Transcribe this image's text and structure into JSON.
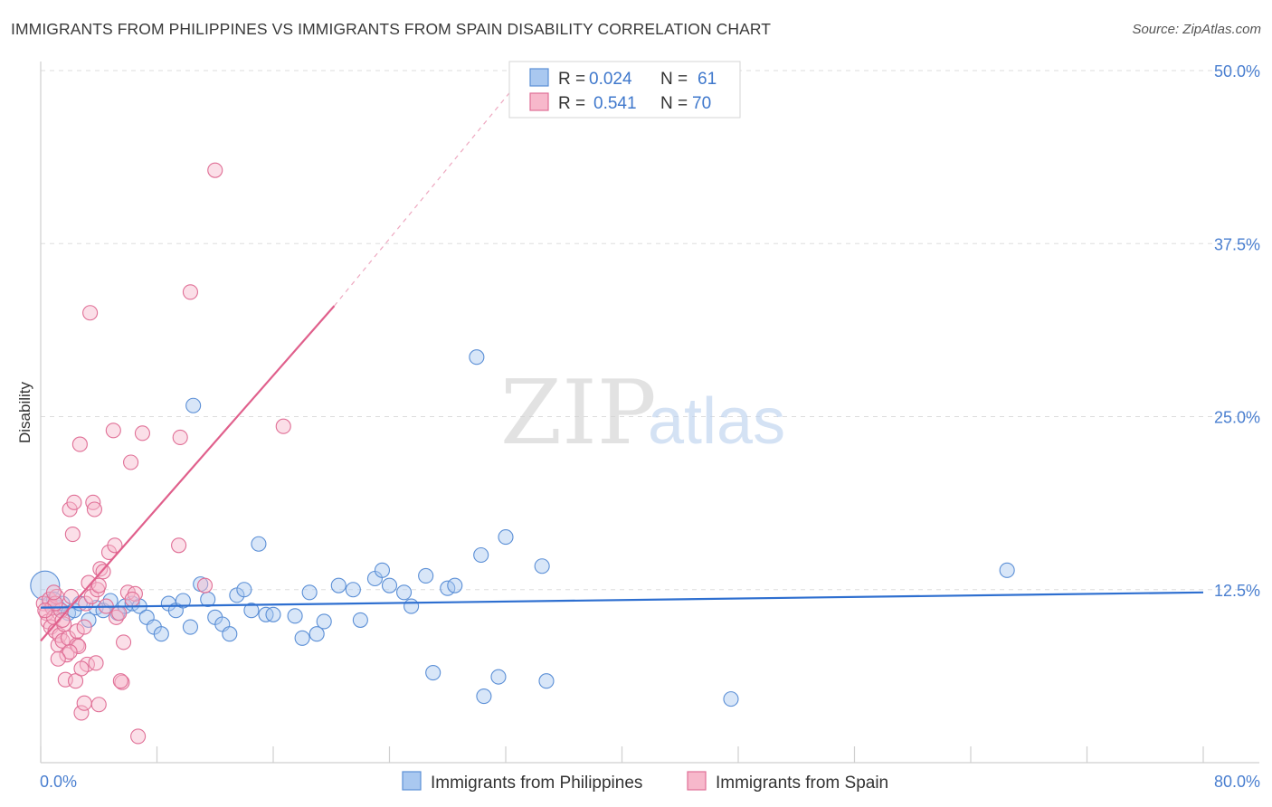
{
  "title": "IMMIGRANTS FROM PHILIPPINES VS IMMIGRANTS FROM SPAIN DISABILITY CORRELATION CHART",
  "source": "Source: ZipAtlas.com",
  "watermark": {
    "zip": "ZIP",
    "atlas": "atlas"
  },
  "colors": {
    "philippines_fill": "#a9c8f0",
    "philippines_stroke": "#5b8fd6",
    "philippines_line": "#2e6fd0",
    "spain_fill": "#f7b8cb",
    "spain_stroke": "#e06f96",
    "spain_line": "#e0608c",
    "grid": "#dddddd",
    "axis_text": "#4a7fd0"
  },
  "legend": {
    "rows": [
      {
        "r_label": "R =",
        "r_value": "0.024",
        "n_label": "N =",
        "n_value": "61",
        "series": "philippines"
      },
      {
        "r_label": "R =",
        "r_value": "0.541",
        "n_label": "N =",
        "n_value": "70",
        "series": "spain"
      }
    ]
  },
  "bottom_legend": {
    "items": [
      {
        "label": "Immigrants from Philippines",
        "series": "philippines"
      },
      {
        "label": "Immigrants from Spain",
        "series": "spain"
      }
    ]
  },
  "chart_data": {
    "type": "scatter",
    "title": "IMMIGRANTS FROM PHILIPPINES VS IMMIGRANTS FROM SPAIN DISABILITY CORRELATION CHART",
    "xlabel": "",
    "ylabel": "Disability",
    "xlim": [
      0,
      80
    ],
    "ylim": [
      0,
      50
    ],
    "x_tick_labels": [
      "0.0%",
      "80.0%"
    ],
    "x_minor_ticks": [
      0,
      8,
      16,
      24,
      32,
      40,
      48,
      56,
      64,
      72,
      80
    ],
    "y_ticks": [
      12.5,
      25.0,
      37.5,
      50.0
    ],
    "y_tick_labels": [
      "12.5%",
      "25.0%",
      "37.5%",
      "50.0%"
    ],
    "grid": true,
    "series": [
      {
        "name": "Immigrants from Philippines",
        "key": "philippines",
        "trend": {
          "x0": 0,
          "y0": 11.2,
          "x1": 80,
          "y1": 12.3
        },
        "points": [
          [
            0.3,
            12.8,
            16
          ],
          [
            0.6,
            11.5,
            8
          ],
          [
            0.9,
            11.8,
            8
          ],
          [
            1.2,
            11.2,
            8
          ],
          [
            1.5,
            11.5,
            8
          ],
          [
            1.9,
            10.8,
            8
          ],
          [
            2.3,
            11.0,
            8
          ],
          [
            2.7,
            11.5,
            8
          ],
          [
            3.3,
            10.3,
            8
          ],
          [
            3.8,
            11.2,
            8
          ],
          [
            4.3,
            11.0,
            8
          ],
          [
            4.8,
            11.7,
            8
          ],
          [
            5.3,
            10.8,
            8
          ],
          [
            5.8,
            11.3,
            8
          ],
          [
            6.3,
            11.5,
            8
          ],
          [
            6.8,
            11.3,
            8
          ],
          [
            7.3,
            10.5,
            8
          ],
          [
            7.8,
            9.8,
            8
          ],
          [
            8.3,
            9.3,
            8
          ],
          [
            8.8,
            11.5,
            8
          ],
          [
            9.3,
            11.0,
            8
          ],
          [
            9.8,
            11.7,
            8
          ],
          [
            10.3,
            9.8,
            8
          ],
          [
            11.0,
            12.9,
            8
          ],
          [
            11.5,
            11.8,
            8
          ],
          [
            12.0,
            10.5,
            8
          ],
          [
            12.5,
            10.0,
            8
          ],
          [
            13.0,
            9.3,
            8
          ],
          [
            13.5,
            12.1,
            8
          ],
          [
            14.0,
            12.5,
            8
          ],
          [
            14.5,
            11.0,
            8
          ],
          [
            15.0,
            15.8,
            8
          ],
          [
            15.5,
            10.7,
            8
          ],
          [
            16.0,
            10.7,
            8
          ],
          [
            17.5,
            10.6,
            8
          ],
          [
            18.0,
            9.0,
            8
          ],
          [
            18.5,
            12.3,
            8
          ],
          [
            19.0,
            9.3,
            8
          ],
          [
            19.5,
            10.2,
            8
          ],
          [
            20.5,
            12.8,
            8
          ],
          [
            21.5,
            12.5,
            8
          ],
          [
            22.0,
            10.3,
            8
          ],
          [
            23.0,
            13.3,
            8
          ],
          [
            23.5,
            13.9,
            8
          ],
          [
            24.0,
            12.8,
            8
          ],
          [
            25.0,
            12.3,
            8
          ],
          [
            25.5,
            11.3,
            8
          ],
          [
            26.5,
            13.5,
            8
          ],
          [
            27.0,
            6.5,
            8
          ],
          [
            28.0,
            12.6,
            8
          ],
          [
            28.5,
            12.8,
            8
          ],
          [
            30.0,
            29.3,
            8
          ],
          [
            30.3,
            15.0,
            8
          ],
          [
            30.5,
            4.8,
            8
          ],
          [
            31.5,
            6.2,
            8
          ],
          [
            32.0,
            16.3,
            8
          ],
          [
            34.5,
            14.2,
            8
          ],
          [
            34.8,
            5.9,
            8
          ],
          [
            47.5,
            4.6,
            8
          ],
          [
            66.5,
            13.9,
            8
          ],
          [
            10.5,
            25.8,
            8
          ]
        ]
      },
      {
        "name": "Immigrants from Spain",
        "key": "spain",
        "trend": {
          "x0": 0,
          "y0": 8.8,
          "x1": 20.2,
          "y1": 33.0
        },
        "trend_dashed": {
          "x0": 20.2,
          "y0": 33.0,
          "x1": 32.5,
          "y1": 48.7
        },
        "points": [
          [
            0.2,
            11.5,
            8
          ],
          [
            0.4,
            10.8,
            8
          ],
          [
            0.5,
            10.2,
            8
          ],
          [
            0.6,
            11.8,
            8
          ],
          [
            0.7,
            9.8,
            8
          ],
          [
            0.8,
            11.2,
            8
          ],
          [
            0.9,
            10.5,
            8
          ],
          [
            1.0,
            9.5,
            8
          ],
          [
            1.1,
            12.0,
            8
          ],
          [
            1.2,
            8.5,
            8
          ],
          [
            1.3,
            9.2,
            8
          ],
          [
            1.4,
            11.0,
            8
          ],
          [
            1.5,
            8.8,
            8
          ],
          [
            1.6,
            10.0,
            8
          ],
          [
            1.7,
            6.0,
            8
          ],
          [
            1.8,
            7.8,
            8
          ],
          [
            1.9,
            9.0,
            8
          ],
          [
            2.0,
            18.3,
            8
          ],
          [
            2.1,
            12.0,
            8
          ],
          [
            2.2,
            16.5,
            8
          ],
          [
            2.3,
            18.8,
            8
          ],
          [
            2.4,
            5.9,
            8
          ],
          [
            2.5,
            8.5,
            8
          ],
          [
            2.6,
            8.4,
            8
          ],
          [
            2.7,
            23.0,
            8
          ],
          [
            2.8,
            3.6,
            8
          ],
          [
            3.0,
            4.3,
            8
          ],
          [
            3.1,
            11.5,
            8
          ],
          [
            3.2,
            7.1,
            8
          ],
          [
            3.3,
            13.0,
            8
          ],
          [
            3.4,
            32.5,
            8
          ],
          [
            3.5,
            12.0,
            8
          ],
          [
            3.6,
            18.8,
            8
          ],
          [
            3.7,
            18.3,
            8
          ],
          [
            3.9,
            12.5,
            8
          ],
          [
            4.0,
            4.2,
            8
          ],
          [
            4.1,
            14.0,
            8
          ],
          [
            4.3,
            13.8,
            8
          ],
          [
            4.5,
            11.3,
            8
          ],
          [
            4.7,
            15.2,
            8
          ],
          [
            5.0,
            24.0,
            8
          ],
          [
            5.1,
            15.7,
            8
          ],
          [
            5.2,
            10.5,
            8
          ],
          [
            5.4,
            10.8,
            8
          ],
          [
            5.6,
            5.8,
            8
          ],
          [
            5.7,
            8.7,
            8
          ],
          [
            6.0,
            12.3,
            8
          ],
          [
            6.2,
            21.7,
            8
          ],
          [
            6.5,
            12.2,
            8
          ],
          [
            6.7,
            1.9,
            8
          ],
          [
            7.0,
            23.8,
            8
          ],
          [
            9.5,
            15.7,
            8
          ],
          [
            9.6,
            23.5,
            8
          ],
          [
            10.3,
            34.0,
            8
          ],
          [
            12.0,
            42.8,
            8
          ],
          [
            16.7,
            24.3,
            8
          ],
          [
            11.3,
            12.8,
            8
          ],
          [
            5.5,
            5.9,
            8
          ],
          [
            1.0,
            11.5,
            8
          ],
          [
            2.0,
            8.0,
            8
          ],
          [
            0.3,
            11.0,
            8
          ],
          [
            1.5,
            10.3,
            8
          ],
          [
            2.5,
            9.5,
            8
          ],
          [
            3.0,
            9.8,
            8
          ],
          [
            4.0,
            12.8,
            8
          ],
          [
            0.9,
            12.3,
            8
          ],
          [
            1.2,
            7.5,
            8
          ],
          [
            2.8,
            6.8,
            8
          ],
          [
            3.8,
            7.2,
            8
          ],
          [
            6.3,
            11.8,
            8
          ]
        ]
      }
    ]
  }
}
